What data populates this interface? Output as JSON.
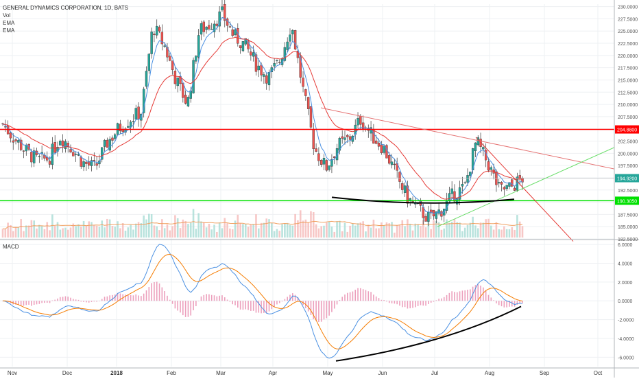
{
  "header": {
    "symbol": "GENERAL DYNAMICS CORPORATION, 1D, BATS",
    "indicators": [
      "Vol",
      "EMA",
      "EMA"
    ]
  },
  "macd_panel": {
    "label": "MACD"
  },
  "colors": {
    "bull": "#26a69a",
    "bear": "#ef5350",
    "resistance": "#ff0000",
    "support": "#00e000",
    "ema_fast": "#4a90e2",
    "ema_slow": "#e53935",
    "macd_line": "#4a90e2",
    "signal_line": "#f57c00"
  },
  "chart_data": [
    {
      "type": "candlestick",
      "title": "GENERAL DYNAMICS CORPORATION, 1D, BATS",
      "x_labels": [
        "Nov",
        "Dec",
        "2018",
        "Feb",
        "Mar",
        "Apr",
        "May",
        "Jun",
        "Jul",
        "Aug",
        "Sep",
        "Oct"
      ],
      "ylim": [
        182.5,
        230.5
      ],
      "y_ticks": [
        "230.0000",
        "227.5000",
        "225.0000",
        "222.5000",
        "220.0000",
        "217.5000",
        "215.0000",
        "212.5000",
        "210.0000",
        "207.5000",
        "205.0000",
        "202.5000",
        "200.0000",
        "197.5000",
        "195.0000",
        "192.5000",
        "190.0000",
        "187.5000",
        "185.0000",
        "182.5000"
      ],
      "price_labels": [
        {
          "value": 204.88,
          "text": "204.8800",
          "color": "#ff0000"
        },
        {
          "value": 194.92,
          "text": "194.9200",
          "color": "#26a69a"
        },
        {
          "value": 190.305,
          "text": "190.3050",
          "color": "#00e000"
        }
      ],
      "horizontal_levels": [
        {
          "value": 204.88,
          "name": "resistance"
        },
        {
          "value": 190.305,
          "name": "support"
        }
      ],
      "close_approx": [
        [
          0,
          206.0
        ],
        [
          1,
          203.0
        ],
        [
          2,
          200.5
        ],
        [
          3,
          198.5
        ],
        [
          4,
          199.0
        ],
        [
          5,
          203.5
        ],
        [
          6,
          201.0
        ],
        [
          7,
          198.0
        ],
        [
          8,
          197.0
        ],
        [
          9,
          202.0
        ],
        [
          10,
          205.0
        ],
        [
          11,
          207.0
        ],
        [
          12,
          208.5
        ],
        [
          13,
          226.0
        ],
        [
          14,
          222.0
        ],
        [
          15,
          215.0
        ],
        [
          16,
          210.0
        ],
        [
          17,
          225.0
        ],
        [
          18,
          226.5
        ],
        [
          19,
          228.5
        ],
        [
          20,
          224.0
        ],
        [
          21,
          222.0
        ],
        [
          22,
          218.0
        ],
        [
          23,
          215.5
        ],
        [
          24,
          219.0
        ],
        [
          25,
          226.5
        ],
        [
          26,
          213.0
        ],
        [
          27,
          201.0
        ],
        [
          28,
          197.0
        ],
        [
          29,
          201.5
        ],
        [
          30,
          203.0
        ],
        [
          31,
          207.0
        ],
        [
          32,
          203.5
        ],
        [
          33,
          201.0
        ],
        [
          34,
          196.0
        ],
        [
          35,
          191.0
        ],
        [
          36,
          188.5
        ],
        [
          37,
          186.5
        ],
        [
          38,
          188.5
        ],
        [
          39,
          191.5
        ],
        [
          40,
          193.0
        ],
        [
          41,
          202.5
        ],
        [
          42,
          198.0
        ],
        [
          43,
          192.5
        ],
        [
          44,
          193.0
        ],
        [
          45,
          194.9
        ]
      ]
    },
    {
      "type": "line",
      "title": "MACD",
      "ylim": [
        -7.0,
        6.3
      ],
      "y_ticks": [
        "6.0000",
        "4.0000",
        "2.0000",
        "0.0000",
        "-2.0000",
        "-4.0000",
        "-6.0000"
      ]
    }
  ]
}
